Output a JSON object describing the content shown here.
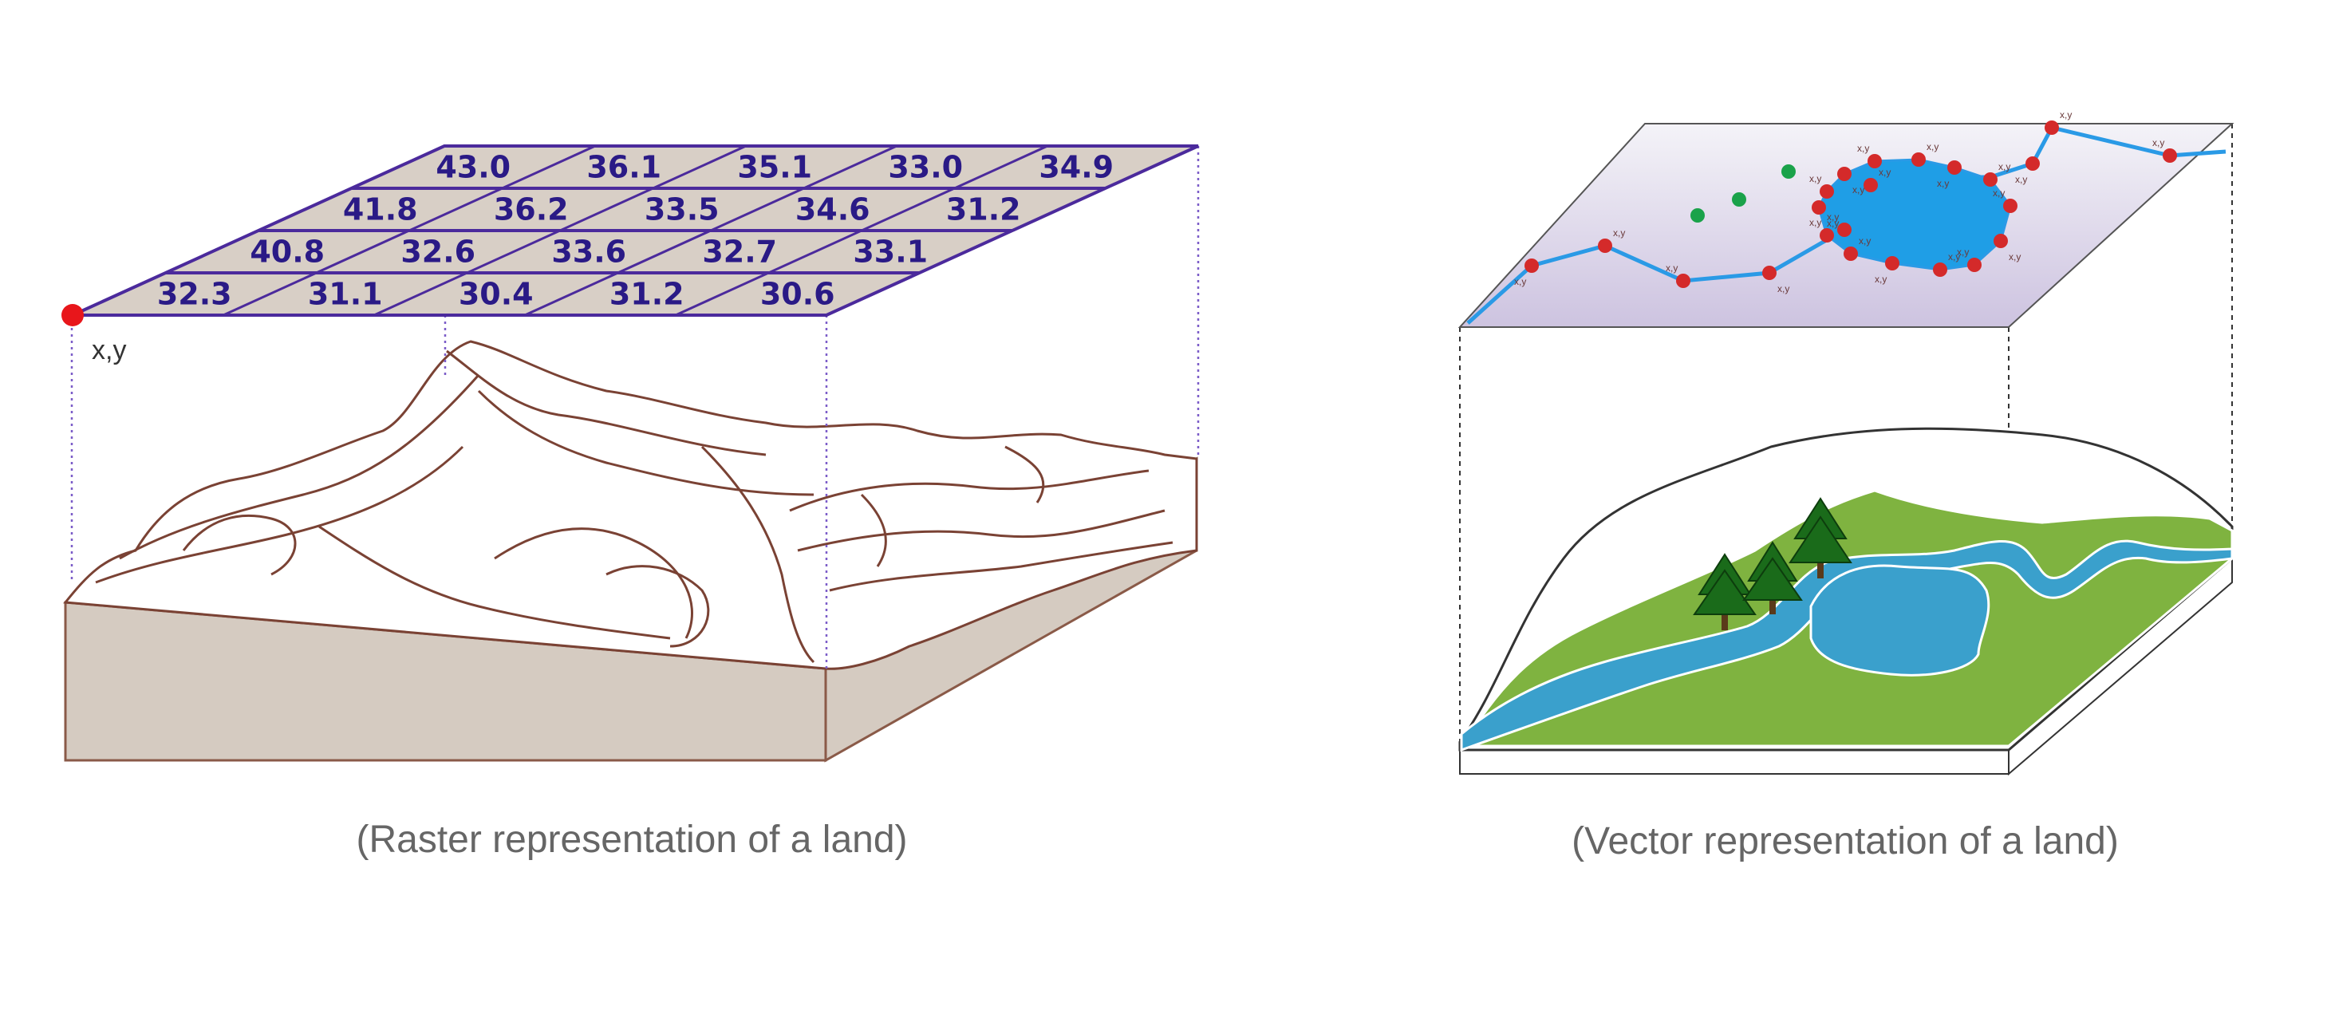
{
  "raster": {
    "caption": "(Raster representation of a land)",
    "origin_label": "x,y",
    "grid": [
      [
        "43.0",
        "36.1",
        "35.1",
        "33.0",
        "34.9"
      ],
      [
        "41.8",
        "36.2",
        "33.5",
        "34.6",
        "31.2"
      ],
      [
        "40.8",
        "32.6",
        "33.6",
        "32.7",
        "33.1"
      ],
      [
        "32.3",
        "31.1",
        "30.4",
        "31.2",
        "30.6"
      ]
    ]
  },
  "vector": {
    "caption": "(Vector representation of a land)",
    "point_label": "x,y"
  },
  "colors": {
    "grid_fill": "#d8cfc6",
    "grid_line": "#4b2a9c",
    "grid_text": "#2a1a86",
    "terrain_fill": "#d5cbc1",
    "contour": "#7a4234",
    "origin_dot": "#e8161b",
    "vector_plane": "#e6e2f0",
    "lake": "#1f9ee6",
    "vertex": "#d42a2a",
    "green_point": "#1aa24a",
    "grass": "#7fb340",
    "river": "#3aa0cc",
    "tree": "#1a6b1a",
    "caption": "#666666"
  }
}
